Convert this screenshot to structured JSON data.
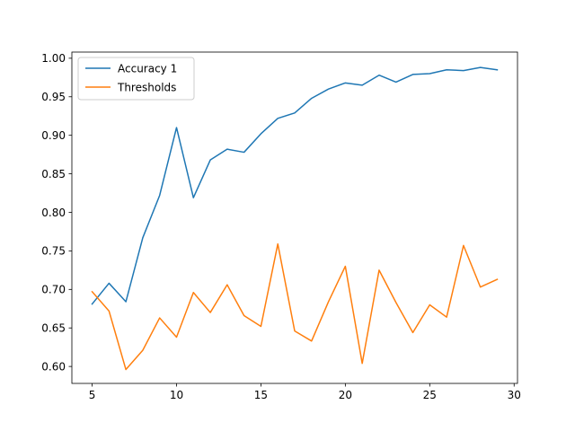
{
  "chart_data": {
    "type": "line",
    "title": "",
    "xlabel": "",
    "ylabel": "",
    "xlim": [
      3.8,
      30.2
    ],
    "ylim": [
      0.578,
      1.008
    ],
    "x_ticks": [
      5,
      10,
      15,
      20,
      25,
      30
    ],
    "x_tick_labels": [
      "5",
      "10",
      "15",
      "20",
      "25",
      "30"
    ],
    "y_ticks": [
      0.6,
      0.65,
      0.7,
      0.75,
      0.8,
      0.85,
      0.9,
      0.95,
      1.0
    ],
    "y_tick_labels": [
      "0.60",
      "0.65",
      "0.70",
      "0.75",
      "0.80",
      "0.85",
      "0.90",
      "0.95",
      "1.00"
    ],
    "grid": false,
    "legend_position": "top-left",
    "x": [
      5,
      6,
      7,
      8,
      9,
      10,
      11,
      12,
      13,
      14,
      15,
      16,
      17,
      18,
      19,
      20,
      21,
      22,
      23,
      24,
      25,
      26,
      27,
      28,
      29
    ],
    "series": [
      {
        "name": "Accuracy 1",
        "color": "#1f77b4",
        "values": [
          0.681,
          0.708,
          0.684,
          0.767,
          0.822,
          0.91,
          0.819,
          0.868,
          0.882,
          0.878,
          0.902,
          0.922,
          0.929,
          0.948,
          0.96,
          0.968,
          0.965,
          0.978,
          0.969,
          0.979,
          0.98,
          0.985,
          0.984,
          0.988,
          0.985
        ]
      },
      {
        "name": "Thresholds",
        "color": "#ff7f0e",
        "values": [
          0.697,
          0.672,
          0.596,
          0.621,
          0.663,
          0.638,
          0.696,
          0.67,
          0.706,
          0.666,
          0.652,
          0.759,
          0.646,
          0.633,
          0.684,
          0.73,
          0.604,
          0.725,
          0.683,
          0.644,
          0.68,
          0.664,
          0.757,
          0.703,
          0.713
        ]
      }
    ]
  }
}
